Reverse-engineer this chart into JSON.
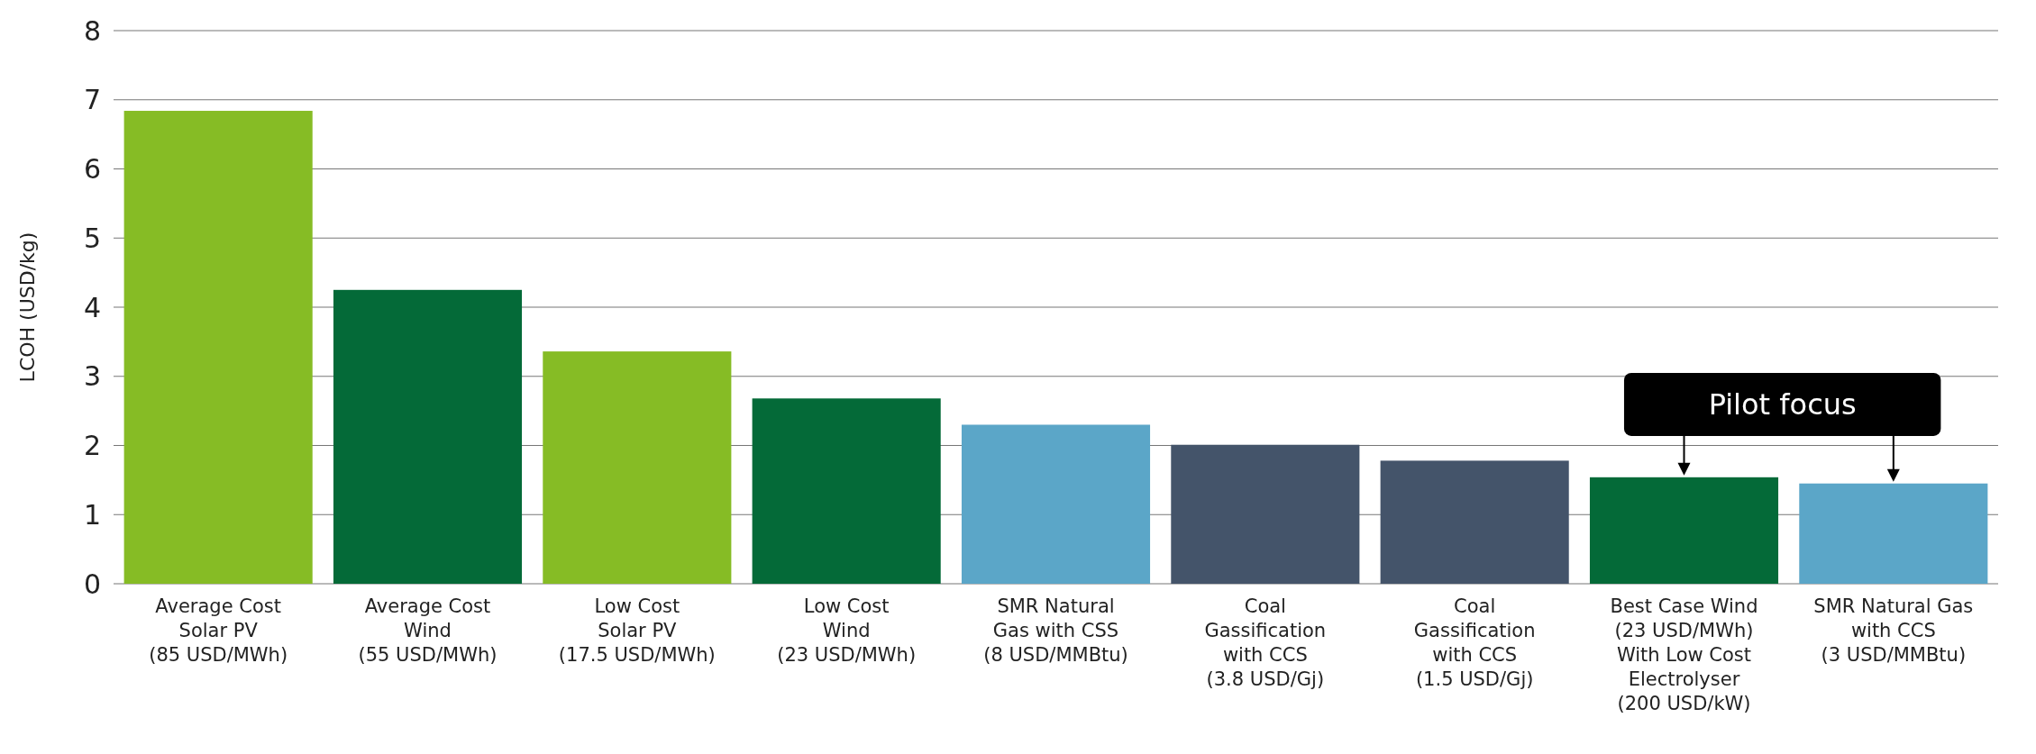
{
  "chart_data": {
    "type": "bar",
    "ylabel": "LCOH (USD/kg)",
    "categories": [
      "Average Cost\nSolar PV\n(85 USD/MWh)",
      "Average Cost\nWind\n(55 USD/MWh)",
      "Low Cost\nSolar PV\n(17.5 USD/MWh)",
      "Low Cost\nWind\n(23 USD/MWh)",
      "SMR Natural\nGas with CSS\n(8 USD/MMBtu)",
      "Coal\nGassification\nwith CCS\n(3.8 USD/Gj)",
      "Coal\nGassification\nwith CCS\n(1.5 USD/Gj)",
      "Best Case Wind\n(23 USD/MWh)\nWith Low Cost\nElectrolyser\n(200 USD/kW)",
      "SMR Natural Gas\nwith CCS\n(3 USD/MMBtu)"
    ],
    "values": [
      6.84,
      4.25,
      3.36,
      2.68,
      2.3,
      2.01,
      1.78,
      1.54,
      1.45
    ],
    "colors": [
      "#86bc25",
      "#046a38",
      "#86bc25",
      "#046a38",
      "#5ba6c8",
      "#44546a",
      "#44546a",
      "#046a38",
      "#5ba6c8"
    ],
    "ylim": [
      0,
      8
    ],
    "yticks": [
      0,
      1,
      2,
      3,
      4,
      5,
      6,
      7,
      8
    ],
    "grid": "y",
    "annotations": [
      "Pilot focus"
    ]
  }
}
